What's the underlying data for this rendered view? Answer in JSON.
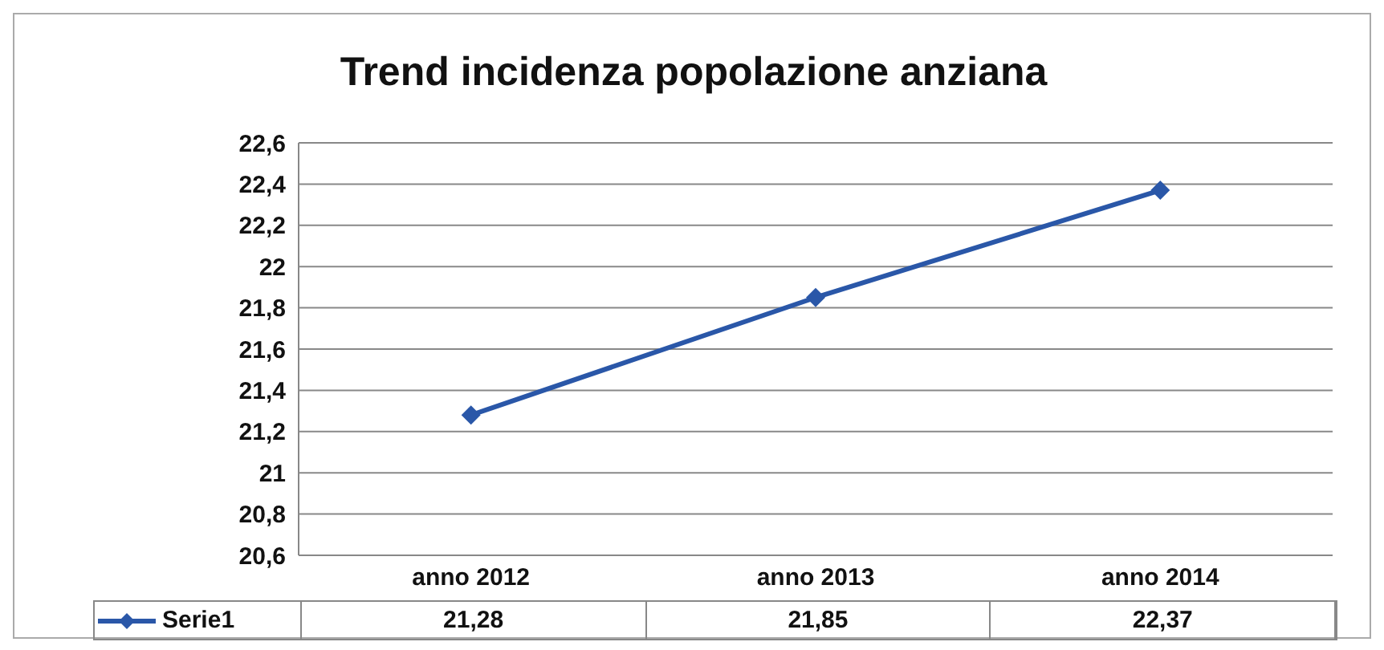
{
  "chart_data": {
    "type": "line",
    "title": "Trend incidenza popolazione anziana",
    "categories": [
      "anno 2012",
      "anno 2013",
      "anno 2014"
    ],
    "series": [
      {
        "name": "Serie1",
        "color": "#2a57a8",
        "values": [
          21.28,
          21.85,
          22.37
        ],
        "value_labels": [
          "21,28",
          "21,85",
          "22,37"
        ]
      }
    ],
    "ylim": [
      20.6,
      22.6
    ],
    "yticks": [
      {
        "value": 20.6,
        "label": "20,6"
      },
      {
        "value": 20.8,
        "label": "20,8"
      },
      {
        "value": 21,
        "label": "21"
      },
      {
        "value": 21.2,
        "label": "21,2"
      },
      {
        "value": 21.4,
        "label": "21,4"
      },
      {
        "value": 21.6,
        "label": "21,6"
      },
      {
        "value": 21.8,
        "label": "21,8"
      },
      {
        "value": 22,
        "label": "22"
      },
      {
        "value": 22.2,
        "label": "22,2"
      },
      {
        "value": 22.4,
        "label": "22,4"
      },
      {
        "value": 22.6,
        "label": "22,6"
      }
    ],
    "grid": "y",
    "legend": "bottom",
    "marker": "diamond",
    "line_style": "solid"
  }
}
